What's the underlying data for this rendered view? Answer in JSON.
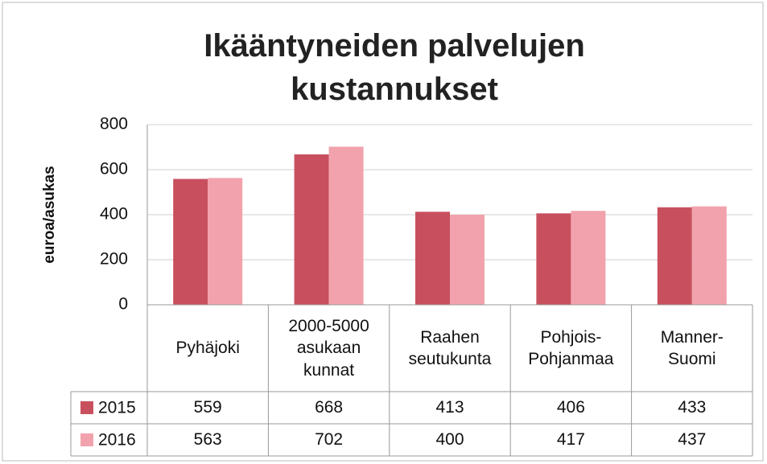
{
  "chart_data": {
    "type": "bar",
    "title": "Ikääntyneiden palvelujen\nkustannukset",
    "y_label": "euroa/asukas",
    "categories": [
      "Pyhäjoki",
      "2000-5000\nasukaan\nkunnat",
      "Raahen\nseutukunta",
      "Pohjois-\nPohjanmaa",
      "Manner-\nSuomi"
    ],
    "series": [
      {
        "name": "2015",
        "color": "#c8505e",
        "values": [
          559,
          668,
          413,
          406,
          433
        ]
      },
      {
        "name": "2016",
        "color": "#f2a2ac",
        "values": [
          563,
          702,
          400,
          417,
          437
        ]
      }
    ],
    "ylim": [
      0,
      800
    ],
    "yticks": [
      0,
      200,
      400,
      600,
      800
    ],
    "grid": true,
    "data_table": true
  }
}
